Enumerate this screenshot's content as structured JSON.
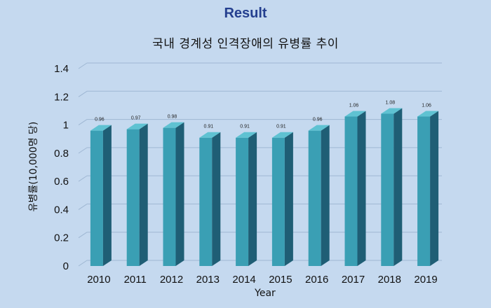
{
  "heading": "Result",
  "chart_data": {
    "type": "bar",
    "title": "국내 경계성 인격장애의 유병률 추이",
    "xlabel": "Year",
    "ylabel": "유병률(10,000명 당)",
    "categories": [
      "2010",
      "2011",
      "2012",
      "2013",
      "2014",
      "2015",
      "2016",
      "2017",
      "2018",
      "2019"
    ],
    "values": [
      0.96,
      0.97,
      0.98,
      0.91,
      0.91,
      0.91,
      0.96,
      1.06,
      1.08,
      1.06
    ],
    "data_labels": [
      "0.96",
      "0.97",
      "0.98",
      "0.91",
      "0.91",
      "0.91",
      "0.96",
      "1.06",
      "1.08",
      "1.06"
    ],
    "ylim": [
      0,
      1.4
    ],
    "yticks": [
      "0",
      "0.2",
      "0.4",
      "0.6",
      "0.8",
      "1",
      "1.2",
      "1.4"
    ],
    "grid": true,
    "legend": "none",
    "colors": {
      "bar_front": "#3a9fb4",
      "bar_side": "#1f5e75",
      "bar_top": "#5fc2d2",
      "gridline": "#9fb7d3",
      "background": "#c5d9ef",
      "heading": "#243f8f"
    }
  }
}
